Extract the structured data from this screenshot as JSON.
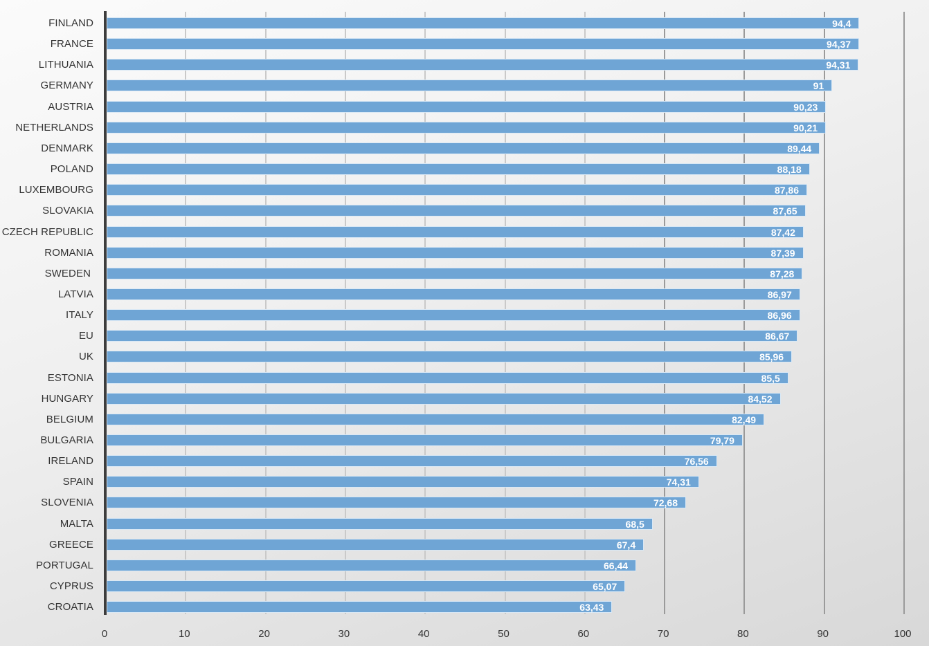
{
  "chart_data": {
    "type": "bar",
    "orientation": "horizontal",
    "title": "",
    "xlabel": "",
    "ylabel": "",
    "xlim": [
      0,
      100
    ],
    "x_ticks": [
      "0",
      "10",
      "20",
      "30",
      "40",
      "50",
      "60",
      "70",
      "80",
      "90",
      "100"
    ],
    "grid": true,
    "legend": null,
    "bar_color": "#6fa5d5",
    "decimal_separator": ",",
    "categories": [
      "FINLAND",
      "FRANCE",
      "LITHUANIA",
      "GERMANY",
      "AUSTRIA",
      "NETHERLANDS",
      "DENMARK",
      "POLAND",
      "LUXEMBOURG",
      "SLOVAKIA",
      "CZECH REPUBLIC",
      "ROMANIA",
      "SWEDEN",
      "LATVIA",
      "ITALY",
      "EU",
      "UK",
      "ESTONIA",
      "HUNGARY",
      "BELGIUM",
      "BULGARIA",
      "IRELAND",
      "SPAIN",
      "SLOVENIA",
      "MALTA",
      "GREECE",
      "PORTUGAL",
      "CYPRUS",
      "CROATIA"
    ],
    "values": [
      94.4,
      94.37,
      94.31,
      91,
      90.23,
      90.21,
      89.44,
      88.18,
      87.86,
      87.65,
      87.42,
      87.39,
      87.28,
      86.97,
      86.96,
      86.67,
      85.96,
      85.5,
      84.52,
      82.49,
      79.79,
      76.56,
      74.31,
      72.68,
      68.5,
      67.4,
      66.44,
      65.07,
      63.43
    ],
    "value_labels": [
      "94,4",
      "94,37",
      "94,31",
      "91",
      "90,23",
      "90,21",
      "89,44",
      "88,18",
      "87,86",
      "87,65",
      "87,42",
      "87,39",
      "87,28",
      "86,97",
      "86,96",
      "86,67",
      "85,96",
      "85,5",
      "84,52",
      "82,49",
      "79,79",
      "76,56",
      "74,31",
      "72,68",
      "68,5",
      "67,4",
      "66,44",
      "65,07",
      "63,43"
    ]
  }
}
